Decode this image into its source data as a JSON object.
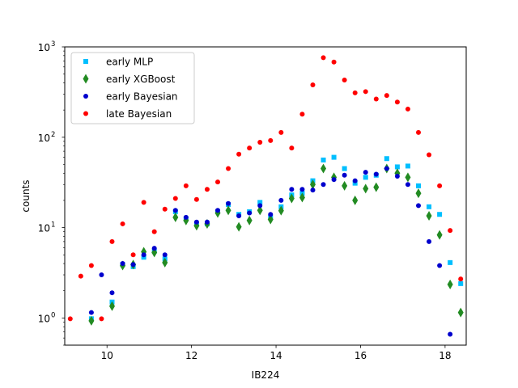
{
  "chart_data": {
    "type": "scatter",
    "xlabel": "IB224",
    "ylabel": "counts",
    "xlim": [
      9.0,
      18.5
    ],
    "ylim": [
      0.5,
      1000
    ],
    "y_scale": "log",
    "x_ticks": [
      10,
      12,
      14,
      16,
      18
    ],
    "y_ticks": [
      {
        "value": 1,
        "label": "10",
        "exp": "0"
      },
      {
        "value": 10,
        "label": "10",
        "exp": "1"
      },
      {
        "value": 100,
        "label": "10",
        "exp": "2"
      },
      {
        "value": 1000,
        "label": "10",
        "exp": "3"
      }
    ],
    "legend_position": "top-left",
    "series": [
      {
        "name": "early MLP",
        "marker": "square",
        "color": "#00bfff",
        "points": [
          [
            9.63,
            0.98
          ],
          [
            10.12,
            1.5
          ],
          [
            10.37,
            3.9
          ],
          [
            10.62,
            3.7
          ],
          [
            10.87,
            4.7
          ],
          [
            11.12,
            5.5
          ],
          [
            11.37,
            4.5
          ],
          [
            11.62,
            15
          ],
          [
            11.87,
            12.5
          ],
          [
            12.12,
            11
          ],
          [
            12.37,
            11
          ],
          [
            12.62,
            15
          ],
          [
            12.87,
            18
          ],
          [
            13.12,
            14
          ],
          [
            13.37,
            15
          ],
          [
            13.62,
            19
          ],
          [
            13.87,
            13
          ],
          [
            14.12,
            17
          ],
          [
            14.37,
            23
          ],
          [
            14.62,
            24
          ],
          [
            14.87,
            33
          ],
          [
            15.12,
            56
          ],
          [
            15.37,
            60
          ],
          [
            15.62,
            45
          ],
          [
            15.87,
            31
          ],
          [
            16.12,
            36
          ],
          [
            16.37,
            38
          ],
          [
            16.62,
            58
          ],
          [
            16.87,
            47
          ],
          [
            17.12,
            48
          ],
          [
            17.37,
            29
          ],
          [
            17.62,
            17
          ],
          [
            17.87,
            14
          ],
          [
            18.12,
            4.1
          ],
          [
            18.37,
            2.4
          ]
        ]
      },
      {
        "name": "early XGBoost",
        "marker": "thin_diamond",
        "color": "#228b22",
        "points": [
          [
            9.63,
            0.93
          ],
          [
            10.12,
            1.35
          ],
          [
            10.37,
            3.8
          ],
          [
            10.62,
            3.9
          ],
          [
            10.87,
            5.4
          ],
          [
            11.12,
            5.3
          ],
          [
            11.37,
            4.1
          ],
          [
            11.62,
            13
          ],
          [
            11.87,
            12
          ],
          [
            12.12,
            10.5
          ],
          [
            12.37,
            11
          ],
          [
            12.62,
            14.5
          ],
          [
            12.87,
            15.5
          ],
          [
            13.12,
            10.2
          ],
          [
            13.37,
            12
          ],
          [
            13.62,
            15.5
          ],
          [
            13.87,
            12.3
          ],
          [
            14.12,
            15.4
          ],
          [
            14.37,
            21
          ],
          [
            14.62,
            21.5
          ],
          [
            14.87,
            30
          ],
          [
            15.12,
            45
          ],
          [
            15.37,
            36
          ],
          [
            15.62,
            29
          ],
          [
            15.87,
            20
          ],
          [
            16.12,
            27
          ],
          [
            16.37,
            28
          ],
          [
            16.62,
            45
          ],
          [
            16.87,
            40
          ],
          [
            17.12,
            36
          ],
          [
            17.37,
            24
          ],
          [
            17.62,
            13.5
          ],
          [
            17.87,
            8.3
          ],
          [
            18.12,
            2.35
          ],
          [
            18.37,
            1.15
          ]
        ]
      },
      {
        "name": "early Bayesian",
        "marker": "circle",
        "color": "#0000cd",
        "points": [
          [
            9.63,
            1.15
          ],
          [
            9.87,
            3.0
          ],
          [
            10.12,
            1.9
          ],
          [
            10.37,
            4.0
          ],
          [
            10.62,
            3.9
          ],
          [
            10.87,
            5.0
          ],
          [
            11.12,
            5.9
          ],
          [
            11.37,
            5.0
          ],
          [
            11.62,
            15.5
          ],
          [
            11.87,
            13
          ],
          [
            12.12,
            11.5
          ],
          [
            12.37,
            11.5
          ],
          [
            12.62,
            15.5
          ],
          [
            12.87,
            18.5
          ],
          [
            13.12,
            13.5
          ],
          [
            13.37,
            14.5
          ],
          [
            13.62,
            17.5
          ],
          [
            13.87,
            14
          ],
          [
            14.12,
            20
          ],
          [
            14.37,
            26.5
          ],
          [
            14.62,
            26.5
          ],
          [
            14.87,
            26
          ],
          [
            15.12,
            30
          ],
          [
            15.37,
            34
          ],
          [
            15.62,
            38
          ],
          [
            15.87,
            33
          ],
          [
            16.12,
            41
          ],
          [
            16.37,
            39
          ],
          [
            16.62,
            45
          ],
          [
            16.87,
            37
          ],
          [
            17.12,
            30
          ],
          [
            17.37,
            17.5
          ],
          [
            17.62,
            7
          ],
          [
            17.87,
            3.8
          ],
          [
            18.12,
            0.66
          ]
        ]
      },
      {
        "name": "late Bayesian",
        "marker": "circle",
        "color": "#ff0000",
        "points": [
          [
            9.13,
            0.98
          ],
          [
            9.38,
            2.9
          ],
          [
            9.63,
            3.8
          ],
          [
            9.87,
            0.98
          ],
          [
            10.12,
            7.0
          ],
          [
            10.37,
            11
          ],
          [
            10.62,
            5.0
          ],
          [
            10.87,
            19
          ],
          [
            11.12,
            9.0
          ],
          [
            11.37,
            16
          ],
          [
            11.62,
            21
          ],
          [
            11.87,
            29
          ],
          [
            12.12,
            20.5
          ],
          [
            12.37,
            26.5
          ],
          [
            12.62,
            32
          ],
          [
            12.87,
            45
          ],
          [
            13.12,
            65
          ],
          [
            13.37,
            76
          ],
          [
            13.62,
            88
          ],
          [
            13.87,
            92
          ],
          [
            14.12,
            113
          ],
          [
            14.37,
            76
          ],
          [
            14.62,
            180
          ],
          [
            14.87,
            380
          ],
          [
            15.12,
            760
          ],
          [
            15.37,
            680
          ],
          [
            15.62,
            430
          ],
          [
            15.87,
            310
          ],
          [
            16.12,
            320
          ],
          [
            16.37,
            265
          ],
          [
            16.62,
            290
          ],
          [
            16.87,
            245
          ],
          [
            17.12,
            205
          ],
          [
            17.37,
            113
          ],
          [
            17.62,
            64
          ],
          [
            17.87,
            29
          ],
          [
            18.12,
            9.3
          ],
          [
            18.37,
            2.7
          ]
        ]
      }
    ]
  }
}
